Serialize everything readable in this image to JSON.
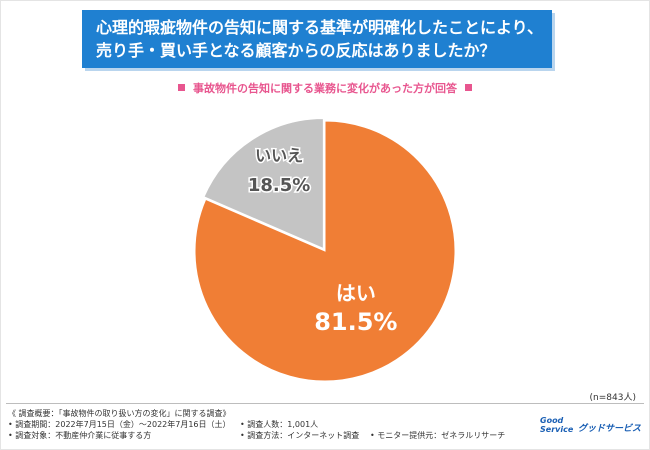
{
  "header": {
    "title_line1": "心理的瑕疵物件の告知に関する基準が明確化したことにより、",
    "title_line2": "売り手・買い手となる顧客からの反応はありましたか？"
  },
  "subtitle": "事故物件の告知に関する業務に変化があった方が回答",
  "colors": {
    "banner": "#1f80d1",
    "yes": "#f07e35",
    "no": "#c4c4c4",
    "subtitle": "#e8568f"
  },
  "chart_data": {
    "type": "pie",
    "slices": [
      {
        "label": "はい",
        "value": 81.5,
        "value_label": "81.5%",
        "color": "#f07e35"
      },
      {
        "label": "いいえ",
        "value": 18.5,
        "value_label": "18.5%",
        "color": "#c4c4c4"
      }
    ]
  },
  "n_note": "(n=843人)",
  "footer": {
    "heading": "《 調査概要：「事故物件の取り扱い方の変化」に関する調査》",
    "period": "• 調査期間：2022年7月15日（金）〜2022年7月16日（土）",
    "target": "• 調査対象：不動産仲介業に従事する方",
    "count": "• 調査人数：1,001人",
    "method": "• 調査方法：インターネット調査",
    "provider": "• モニター提供元：ゼネラルリサーチ"
  },
  "logo": {
    "line1": "Good",
    "line2": "Service",
    "name": "グッドサービス"
  }
}
